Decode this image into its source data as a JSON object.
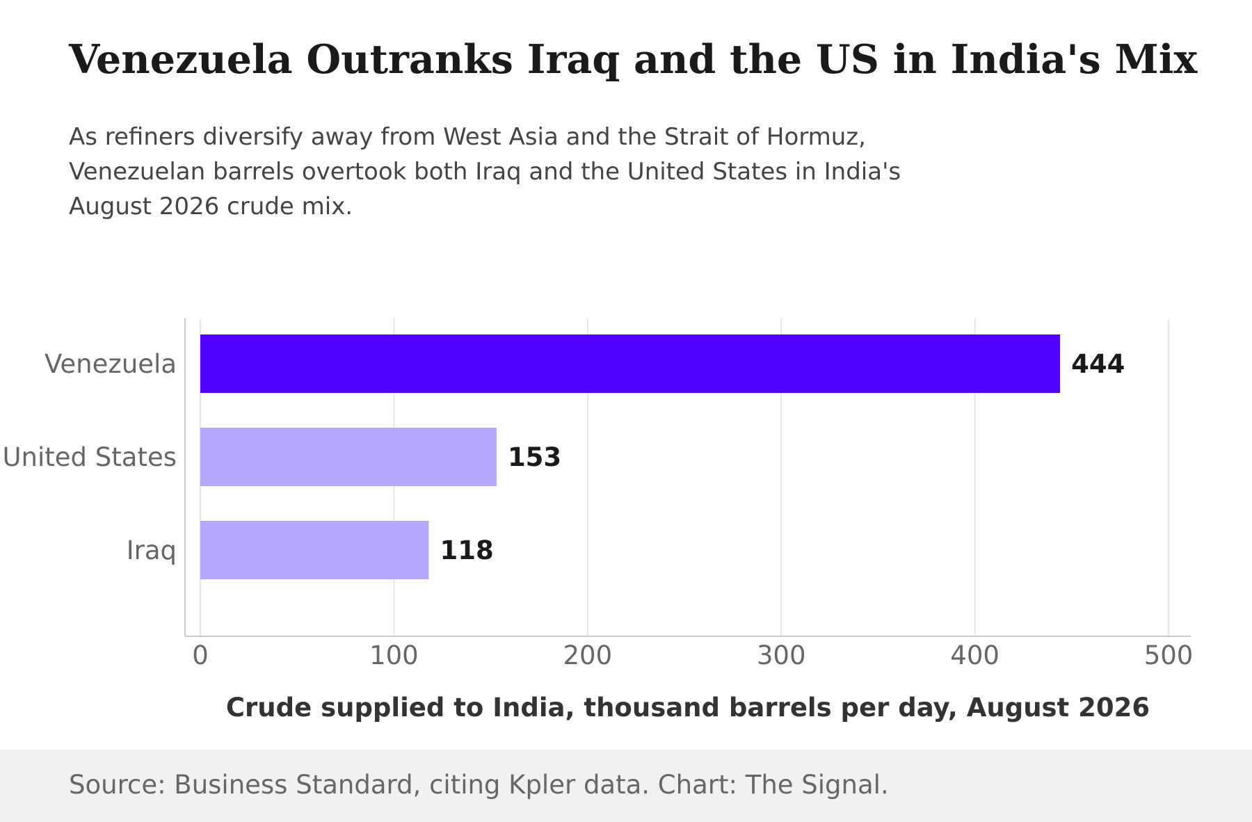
{
  "header": {
    "title": "Venezuela Outranks Iraq and the US in India's Mix",
    "subtitle": "As refiners diversify away from West Asia and the Strait of Hormuz, Venezuelan barrels overtook both Iraq and the United States in India's August 2026 crude mix."
  },
  "chart_data": {
    "type": "bar",
    "orientation": "horizontal",
    "categories": [
      "Venezuela",
      "United States",
      "Iraq"
    ],
    "values": [
      444,
      153,
      118
    ],
    "data_labels": [
      "444",
      "153",
      "118"
    ],
    "highlight_category": "Venezuela",
    "colors": {
      "highlight": "#5200ff",
      "other": "#b8a8fd",
      "gridline": "#e0e0e0",
      "axis": "#cccccc",
      "tick_text": "#666666",
      "label_text": "#1a1a1a",
      "xlabel_text": "#333333"
    },
    "xlim": [
      0,
      500
    ],
    "xticks": [
      0,
      100,
      200,
      300,
      400,
      500
    ],
    "xlabel": "Crude supplied to India, thousand barrels per day, August 2026",
    "ylabel": "",
    "grid": "vertical"
  },
  "footer": {
    "source": "Source: Business Standard, citing Kpler data. Chart: The Signal."
  }
}
